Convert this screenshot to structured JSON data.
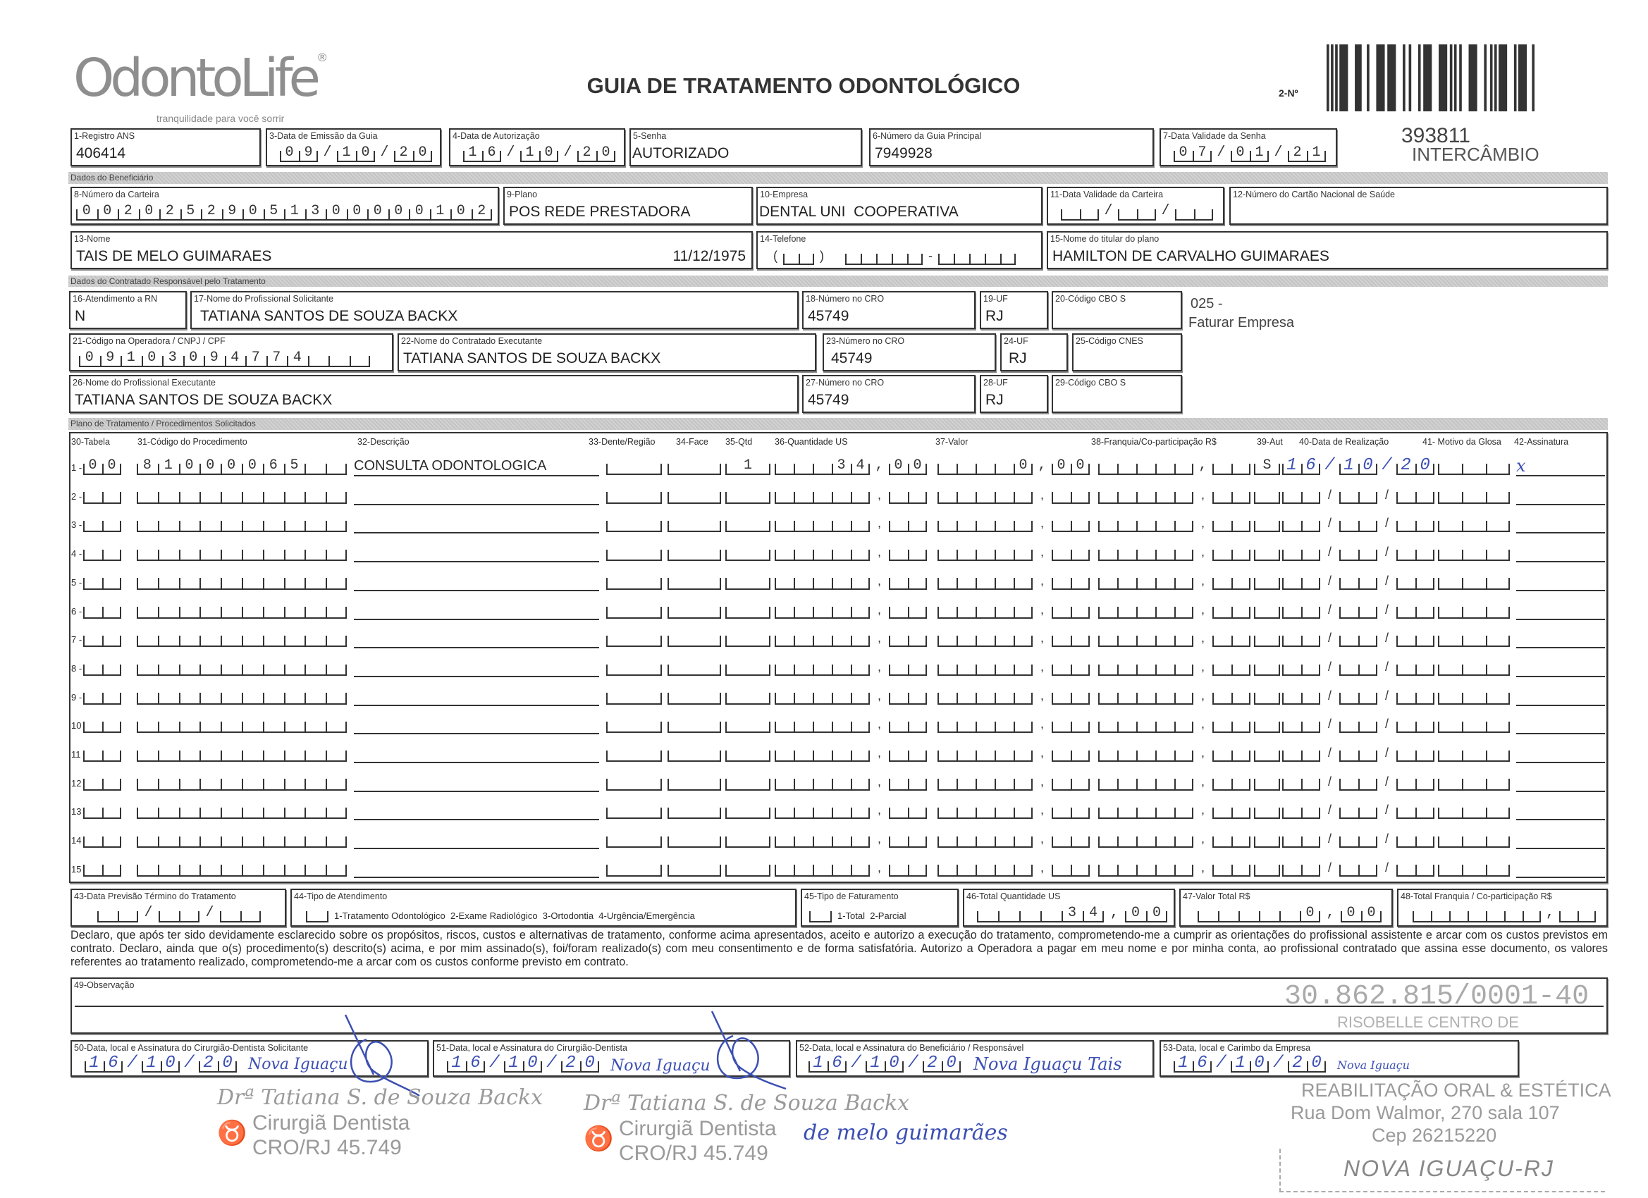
{
  "header": {
    "logo": "OdontoLife",
    "tagline": "tranquilidade para você sorrir",
    "title": "GUIA DE TRATAMENTO ODONTOLÓGICO",
    "guia_number_label": "2-Nº",
    "guia_number": "393811",
    "guia_type": "INTERCÂMBIO"
  },
  "sections": {
    "beneficiario": "Dados do Beneficiário",
    "contratado": "Dados do Contratado Responsável pelo Tratamento",
    "plano": "Plano de Tratamento / Procedimentos Solicitados"
  },
  "fields": {
    "f1": {
      "label": "1-Registro ANS",
      "value": "406414"
    },
    "f3": {
      "label": "3-Data de Emissão da Guia",
      "value": "09/10/20"
    },
    "f4": {
      "label": "4-Data de Autorização",
      "value": "16/10/20"
    },
    "f5": {
      "label": "5-Senha",
      "value": "AUTORIZADO"
    },
    "f6": {
      "label": "6-Número da Guia Principal",
      "value": "7949928"
    },
    "f7": {
      "label": "7-Data Validade da Senha",
      "value": "07/01/21"
    },
    "f8": {
      "label": "8-Número da Carteira",
      "value": "00202529051300000102"
    },
    "f9": {
      "label": "9-Plano",
      "value": "POS REDE PRESTADORA"
    },
    "f10": {
      "label": "10-Empresa",
      "value": "DENTAL UNI  COOPERATIVA"
    },
    "f11": {
      "label": "11-Data Validade da Carteira",
      "value": "//"
    },
    "f12": {
      "label": "12-Número do Cartão Nacional de Saúde",
      "value": ""
    },
    "f13": {
      "label": "13-Nome",
      "value": "TAIS DE MELO GUIMARAES",
      "birth_date": "11/12/1975"
    },
    "f14": {
      "label": "14-Telefone",
      "value": ""
    },
    "f15": {
      "label": "15-Nome do titular do plano",
      "value": "HAMILTON DE CARVALHO GUIMARAES"
    },
    "f16": {
      "label": "16-Atendimento a RN",
      "value": "N"
    },
    "f17": {
      "label": "17-Nome do Profissional Solicitante",
      "value": "TATIANA SANTOS DE SOUZA BACKX"
    },
    "f18": {
      "label": "18-Número no CRO",
      "value": "45749"
    },
    "f19": {
      "label": "19-UF",
      "value": "RJ"
    },
    "f20": {
      "label": "20-Código CBO S",
      "value": ""
    },
    "f21": {
      "label": "21-Código na Operadora / CNPJ / CPF",
      "value": "09103094774"
    },
    "f22": {
      "label": "22-Nome do Contratado Executante",
      "value": "TATIANA SANTOS DE SOUZA BACKX"
    },
    "f23": {
      "label": "23-Número no CRO",
      "value": "45749"
    },
    "f24": {
      "label": "24-UF",
      "value": "RJ"
    },
    "f25": {
      "label": "25-Código CNES",
      "value": ""
    },
    "f26": {
      "label": "26-Nome do Profissional Executante",
      "value": "TATIANA SANTOS DE SOUZA BACKX"
    },
    "f27": {
      "label": "27-Número no CRO",
      "value": "45749"
    },
    "f28": {
      "label": "28-UF",
      "value": "RJ"
    },
    "f29": {
      "label": "29-Código CBO S",
      "value": ""
    }
  },
  "side_notes": {
    "code": "025 -",
    "billing": "Faturar Empresa"
  },
  "procedures": {
    "headers": {
      "tabela": "30-Tabela",
      "codigo": "31-Código do Procedimento",
      "descricao": "32-Descrição",
      "dente": "33-Dente/Região",
      "face": "34-Face",
      "qtd": "35-Qtd",
      "us": "36-Quantidade US",
      "valor": "37-Valor",
      "franquia": "38-Franquia/Co-participação R$",
      "aut": "39-Aut",
      "data": "40-Data de Realização",
      "glosa": "41- Motivo da Glosa",
      "assinatura": "42-Assinatura"
    },
    "rows": [
      {
        "n": "1 -",
        "tabela": "00",
        "codigo": "81000065",
        "descricao": "CONSULTA ODONTOLOGICA",
        "dente": "",
        "face": "",
        "qtd": "1",
        "us": "34,00",
        "valor": "0,00",
        "franquia": ",",
        "aut": "S",
        "data": "16/10/20",
        "glosa": "",
        "assinatura": "x"
      },
      {
        "n": "2 -"
      },
      {
        "n": "3 -"
      },
      {
        "n": "4 -"
      },
      {
        "n": "5 -"
      },
      {
        "n": "6 -"
      },
      {
        "n": "7 -"
      },
      {
        "n": "8 -"
      },
      {
        "n": "9 -"
      },
      {
        "n": "10"
      },
      {
        "n": "11"
      },
      {
        "n": "12"
      },
      {
        "n": "13"
      },
      {
        "n": "14"
      },
      {
        "n": "15"
      }
    ]
  },
  "footer": {
    "f43": {
      "label": "43-Data Previsão Término do Tratamento",
      "value": "//"
    },
    "f44": {
      "label": "44-Tipo de Atendimento",
      "options": "1-Tratamento Odontológico  2-Exame Radiológico  3-Ortodontia  4-Urgência/Emergência",
      "value": ""
    },
    "f45": {
      "label": "45-Tipo de Faturamento",
      "options": "1-Total  2-Parcial",
      "value": ""
    },
    "f46": {
      "label": "46-Total Quantidade US",
      "value": "34,00"
    },
    "f47": {
      "label": "47-Valor Total R$",
      "value": "0,00"
    },
    "f48": {
      "label": "48-Total Franquia / Co-participação R$",
      "value": ","
    },
    "declaration": "Declaro, que após ter sido devidamente esclarecido sobre os propósitos, riscos, custos e alternativas de tratamento, conforme acima apresentados, aceito e autorizo a execução do tratamento, comprometendo-me a cumprir as orientações do profissional assistente e arcar com os custos previstos em contrato. Declaro, ainda que o(s) procedimento(s) descrito(s) acima, e por mim assinado(s), foi/foram realizado(s) com meu consentimento e de forma satisfatória. Autorizo a Operadora a pagar em meu nome e por minha conta, ao profissional contratado que assina esse documento, os valores referentes ao tratamento realizado, comprometendo-me a arcar com os custos conforme previsto em contrato.",
    "f49": {
      "label": "49-Observação",
      "value": ""
    },
    "f50": {
      "label": "50-Data, local e Assinatura do Cirurgião-Dentista Solicitante",
      "date": "16/10/20",
      "place": "Nova Iguaçu"
    },
    "f51": {
      "label": "51-Data, local e Assinatura do Cirurgião-Dentista",
      "date": "16/10/20",
      "place": "Nova Iguaçu"
    },
    "f52": {
      "label": "52-Data, local e Assinatura do Beneficiário / Responsável",
      "date": "16/10/20",
      "place": "Nova Iguaçu Tais",
      "signature_cont": "de melo guimarães"
    },
    "f53": {
      "label": "53-Data, local e Carimbo da Empresa",
      "date": "16/10/20",
      "place": "Nova Iguaçu"
    }
  },
  "stamps": {
    "dentist": {
      "name": "Drª Tatiana S. de Souza Backx",
      "title": "Cirurgiã Dentista",
      "cro": "CRO/RJ 45.749"
    },
    "company": {
      "cnpj": "30.862.815/0001-40",
      "name1": "RISOBELLE CENTRO DE",
      "name2": "REABILITAÇÃO ORAL & ESTÉTICA",
      "address": "Rua Dom Walmor, 270 sala 107",
      "cep": "Cep 26215220",
      "city": "NOVA IGUAÇU-RJ"
    }
  }
}
